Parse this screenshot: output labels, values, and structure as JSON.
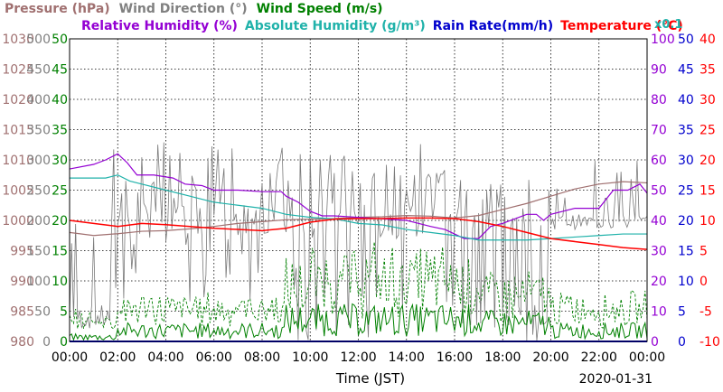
{
  "chart_data": {
    "type": "line",
    "date": "2020-01-31",
    "xlabel": "Time (JST)",
    "x_ticks": [
      "00:00",
      "02:00",
      "04:00",
      "06:00",
      "08:00",
      "10:00",
      "12:00",
      "14:00",
      "16:00",
      "18:00",
      "20:00",
      "22:00",
      "00:00"
    ],
    "legend": {
      "row1": [
        {
          "name": "Pressure (hPa)",
          "color": "#a07070"
        },
        {
          "name": "Wind Direction (°)",
          "color": "#808080"
        },
        {
          "name": "Wind Speed (m/s)",
          "color": "#008000"
        }
      ],
      "row2": [
        {
          "name": "Relative Humidity (%)",
          "color": "#9400d3"
        },
        {
          "name": "Absolute Humidity (g/m³)",
          "color": "#20b2aa"
        },
        {
          "name": "Rain Rate(mm/h)",
          "color": "#0000cd"
        },
        {
          "name": "Temperature (°C)",
          "color": "#ff0000"
        }
      ],
      "scale_note": {
        "text": "x0.1",
        "color": "#20b2aa"
      }
    },
    "axes": {
      "pressure": {
        "ticks": [
          "1030",
          "1025",
          "1020",
          "1015",
          "1010",
          "1005",
          "1000",
          "995",
          "990",
          "985",
          "980"
        ],
        "range": [
          980,
          1030
        ],
        "color": "#a07070"
      },
      "wind_direction": {
        "ticks": [
          "500",
          "450",
          "400",
          "350",
          "300",
          "250",
          "200",
          "150",
          "100",
          "50",
          "0"
        ],
        "range": [
          0,
          500
        ],
        "color": "#808080"
      },
      "wind_speed": {
        "ticks": [
          "50",
          "45",
          "40",
          "35",
          "30",
          "25",
          "20",
          "15",
          "10",
          "5",
          "0"
        ],
        "range": [
          0,
          50
        ],
        "color": "#008000"
      },
      "relative_humidity": {
        "ticks": [
          "100",
          "90",
          "80",
          "70",
          "60",
          "50",
          "40",
          "30",
          "20",
          "10",
          "0"
        ],
        "range": [
          0,
          100
        ],
        "color": "#9400d3"
      },
      "rain_rate": {
        "ticks": [
          "50",
          "45",
          "40",
          "35",
          "30",
          "25",
          "20",
          "15",
          "10",
          "5",
          "0"
        ],
        "range": [
          0,
          50
        ],
        "color": "#0000cd"
      },
      "temperature": {
        "ticks": [
          "40",
          "35",
          "30",
          "25",
          "20",
          "15",
          "10",
          "5",
          "0",
          "-5",
          "-10"
        ],
        "range": [
          -10,
          40
        ],
        "color": "#ff0000"
      }
    },
    "grid": true,
    "x_range_hours": [
      0,
      24
    ],
    "series": [
      {
        "name": "Pressure",
        "axis": "pressure",
        "color": "#a07070",
        "points": [
          [
            0,
            998
          ],
          [
            1,
            997.5
          ],
          [
            2,
            997.8
          ],
          [
            3,
            998.2
          ],
          [
            4,
            998.3
          ],
          [
            5,
            998.6
          ],
          [
            6,
            999
          ],
          [
            7,
            999.5
          ],
          [
            8,
            999.8
          ],
          [
            9,
            1000.1
          ],
          [
            10,
            1000.2
          ],
          [
            11,
            1000.3
          ],
          [
            12,
            1000.5
          ],
          [
            13,
            1000.6
          ],
          [
            14,
            1000.8
          ],
          [
            15,
            1000.7
          ],
          [
            16,
            1000.4
          ],
          [
            17,
            1000.8
          ],
          [
            18,
            1001.8
          ],
          [
            19,
            1002.8
          ],
          [
            20,
            1004
          ],
          [
            21,
            1005.2
          ],
          [
            22,
            1006
          ],
          [
            23,
            1006.4
          ],
          [
            24,
            1006.2
          ]
        ]
      },
      {
        "name": "Relative Humidity",
        "axis": "relative_humidity",
        "color": "#9400d3",
        "points": [
          [
            0,
            57
          ],
          [
            1,
            58.5
          ],
          [
            1.5,
            60
          ],
          [
            2,
            62
          ],
          [
            2.4,
            59
          ],
          [
            2.8,
            55
          ],
          [
            3.5,
            55
          ],
          [
            4.3,
            54
          ],
          [
            4.8,
            52
          ],
          [
            5.5,
            51.5
          ],
          [
            6,
            50
          ],
          [
            7,
            50
          ],
          [
            8,
            49.5
          ],
          [
            8.8,
            49.5
          ],
          [
            9,
            48
          ],
          [
            9.5,
            46
          ],
          [
            10,
            43
          ],
          [
            10.5,
            41.5
          ],
          [
            11,
            41.5
          ],
          [
            12,
            41
          ],
          [
            13,
            40.5
          ],
          [
            14,
            40
          ],
          [
            14.5,
            39
          ],
          [
            15,
            38
          ],
          [
            15.6,
            37
          ],
          [
            16,
            35.5
          ],
          [
            16.4,
            34
          ],
          [
            17,
            34
          ],
          [
            17.5,
            38
          ],
          [
            18,
            39
          ],
          [
            19,
            42
          ],
          [
            19.4,
            42
          ],
          [
            19.7,
            40
          ],
          [
            20,
            42
          ],
          [
            21,
            44
          ],
          [
            21.5,
            44
          ],
          [
            22,
            44
          ],
          [
            22.6,
            50
          ],
          [
            23.2,
            50
          ],
          [
            23.7,
            52
          ],
          [
            24,
            49
          ]
        ]
      },
      {
        "name": "Absolute Humidity",
        "axis": "relative_humidity",
        "color": "#20b2aa",
        "points": [
          [
            0,
            54
          ],
          [
            1,
            54
          ],
          [
            1.5,
            54
          ],
          [
            2,
            55
          ],
          [
            2.5,
            53
          ],
          [
            3,
            52
          ],
          [
            4,
            50
          ],
          [
            5,
            48
          ],
          [
            6,
            46
          ],
          [
            7,
            45
          ],
          [
            8,
            44
          ],
          [
            9,
            42
          ],
          [
            10,
            41
          ],
          [
            11,
            40.5
          ],
          [
            12,
            39
          ],
          [
            13,
            38.5
          ],
          [
            14,
            37
          ],
          [
            15,
            36
          ],
          [
            16,
            35
          ],
          [
            17,
            33.5
          ],
          [
            18,
            33.5
          ],
          [
            19,
            33.5
          ],
          [
            20,
            34
          ],
          [
            21,
            34.5
          ],
          [
            22,
            35
          ],
          [
            23,
            35.5
          ],
          [
            24,
            35.5
          ]
        ]
      },
      {
        "name": "Temperature",
        "axis": "temperature",
        "color": "#ff0000",
        "points": [
          [
            0,
            10
          ],
          [
            1,
            9.5
          ],
          [
            2,
            9
          ],
          [
            3,
            9.5
          ],
          [
            4,
            9.3
          ],
          [
            5,
            9
          ],
          [
            6,
            8.7
          ],
          [
            7,
            8.5
          ],
          [
            8,
            8.3
          ],
          [
            9,
            8.7
          ],
          [
            10,
            9.7
          ],
          [
            11,
            10.2
          ],
          [
            12,
            10.3
          ],
          [
            13,
            10.3
          ],
          [
            14,
            10.4
          ],
          [
            15,
            10.4
          ],
          [
            16,
            10.3
          ],
          [
            17,
            9.8
          ],
          [
            18,
            9
          ],
          [
            19,
            8
          ],
          [
            20,
            7
          ],
          [
            21,
            6.5
          ],
          [
            22,
            6
          ],
          [
            23,
            5.5
          ],
          [
            24,
            5.2
          ]
        ]
      },
      {
        "name": "Rain Rate",
        "axis": "rain_rate",
        "color": "#0000cd",
        "points": [
          [
            0,
            0
          ],
          [
            24,
            0
          ]
        ]
      }
    ]
  }
}
